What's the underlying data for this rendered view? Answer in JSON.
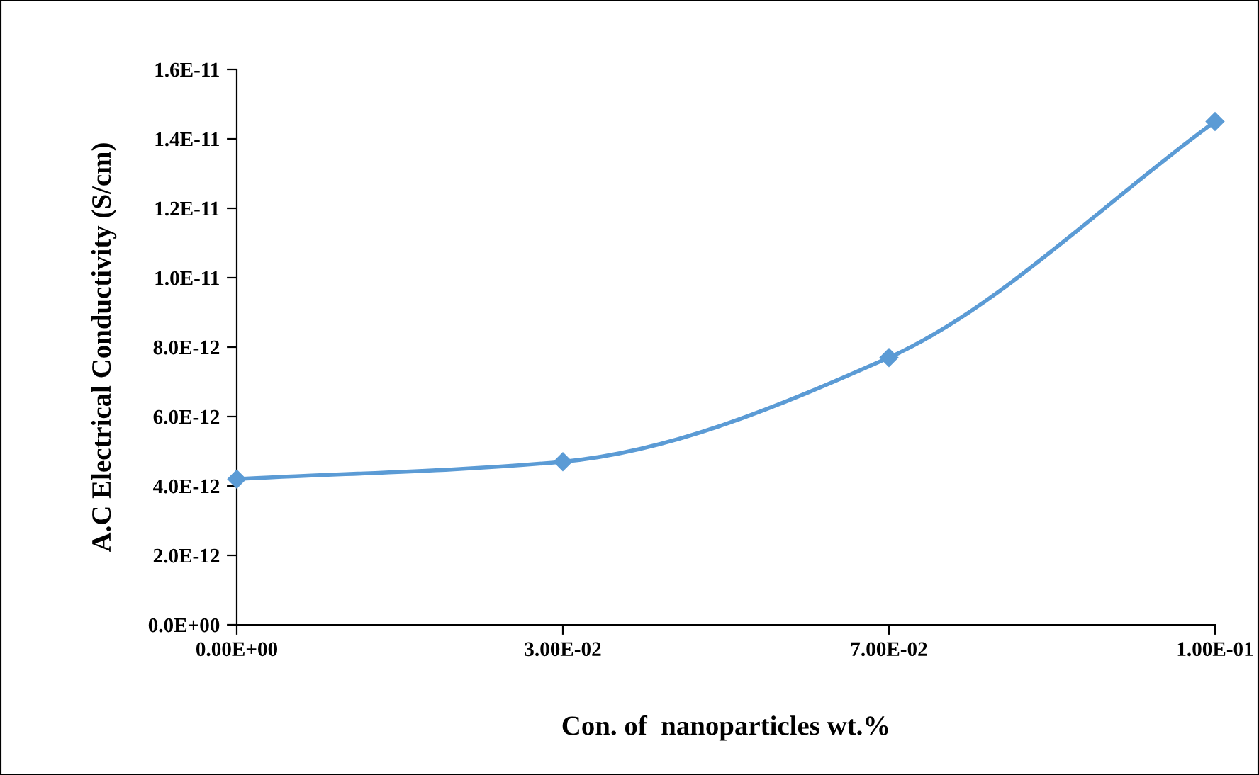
{
  "chart_data": {
    "type": "line",
    "xlabel": "Con. of  nanoparticles wt.%",
    "ylabel": "A.C Electrical Conductivity (S/cm)",
    "categories": [
      "0.00E+00",
      "3.00E-02",
      "7.00E-02",
      "1.00E-01"
    ],
    "series": [
      {
        "color": "#5b9bd5",
        "values": [
          4.2e-12,
          4.7e-12,
          7.7e-12,
          1.45e-11
        ]
      }
    ],
    "marker": "diamond",
    "ylim": [
      0,
      1.6e-11
    ],
    "yticks": [
      {
        "value": 0,
        "label": "0.0E+00"
      },
      {
        "value": 2e-12,
        "label": "2.0E-12"
      },
      {
        "value": 4e-12,
        "label": "4.0E-12"
      },
      {
        "value": 6e-12,
        "label": "6.0E-12"
      },
      {
        "value": 8e-12,
        "label": "8.0E-12"
      },
      {
        "value": 1e-11,
        "label": "1.0E-11"
      },
      {
        "value": 1.2e-11,
        "label": "1.2E-11"
      },
      {
        "value": 1.4e-11,
        "label": "1.4E-11"
      },
      {
        "value": 1.6e-11,
        "label": "1.6E-11"
      }
    ],
    "grid": false,
    "legend": false
  }
}
